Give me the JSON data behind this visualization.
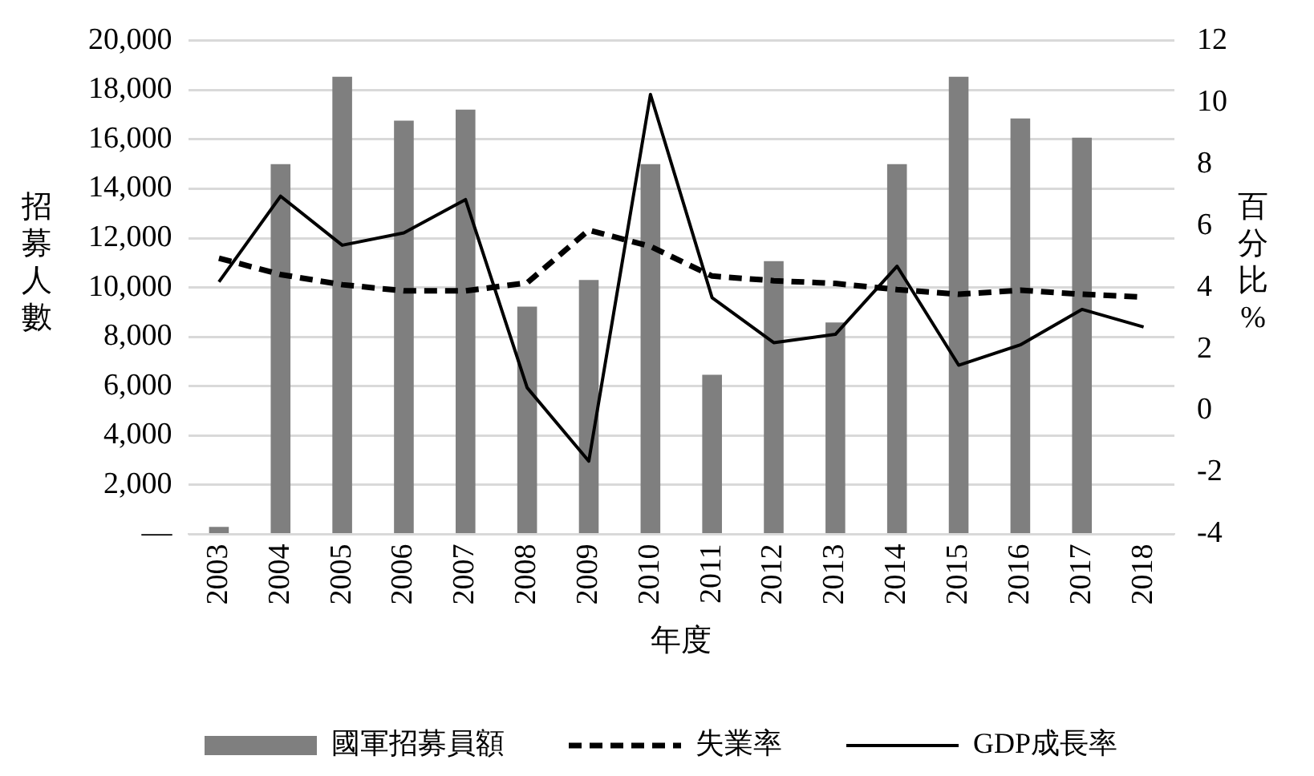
{
  "chart_data": {
    "type": "bar",
    "xlabel": "年度",
    "ylabel": "招募人數",
    "y2label": "百分比%",
    "categories": [
      "2003",
      "2004",
      "2005",
      "2006",
      "2007",
      "2008",
      "2009",
      "2010",
      "2011",
      "2012",
      "2013",
      "2014",
      "2015",
      "2016",
      "2017",
      "2018"
    ],
    "series": [
      {
        "name": "國軍招募員額",
        "color": "#7f7f7f",
        "values": [
          300,
          15000,
          18540,
          16760,
          17210,
          9220,
          10300,
          15000,
          6460,
          11070,
          8580,
          15000,
          18540,
          16850,
          16070,
          null
        ]
      },
      {
        "name": "失業率",
        "type": "line",
        "axis": "y2",
        "color": "#000000",
        "line_style": "dashed",
        "marker": "none",
        "values": [
          4.95,
          4.42,
          4.09,
          3.89,
          3.89,
          4.15,
          5.86,
          5.33,
          4.37,
          4.22,
          4.13,
          3.93,
          3.78,
          3.91,
          3.78,
          3.69
        ]
      },
      {
        "name": "GDP成長率",
        "type": "line",
        "axis": "y2",
        "color": "#000000",
        "line_style": "solid",
        "marker": "none",
        "values": [
          4.18,
          6.96,
          5.37,
          5.77,
          6.85,
          0.75,
          -1.63,
          10.26,
          3.67,
          2.21,
          2.48,
          4.69,
          1.48,
          2.14,
          3.29,
          2.72
        ]
      }
    ],
    "ylim": [
      0,
      20000
    ],
    "yticks": [
      {
        "value": 0,
        "label": "—"
      },
      {
        "value": 2000,
        "label": "2,000"
      },
      {
        "value": 4000,
        "label": "4,000"
      },
      {
        "value": 6000,
        "label": "6,000"
      },
      {
        "value": 8000,
        "label": "8,000"
      },
      {
        "value": 10000,
        "label": "10,000"
      },
      {
        "value": 12000,
        "label": "12,000"
      },
      {
        "value": 14000,
        "label": "14,000"
      },
      {
        "value": 16000,
        "label": "16,000"
      },
      {
        "value": 18000,
        "label": "18,000"
      },
      {
        "value": 20000,
        "label": "20,000"
      }
    ],
    "y2lim": [
      -4,
      12
    ],
    "y2ticks": [
      -4,
      -2,
      0,
      2,
      4,
      6,
      8,
      10,
      12
    ],
    "grid": "y",
    "legend": "bottom"
  }
}
